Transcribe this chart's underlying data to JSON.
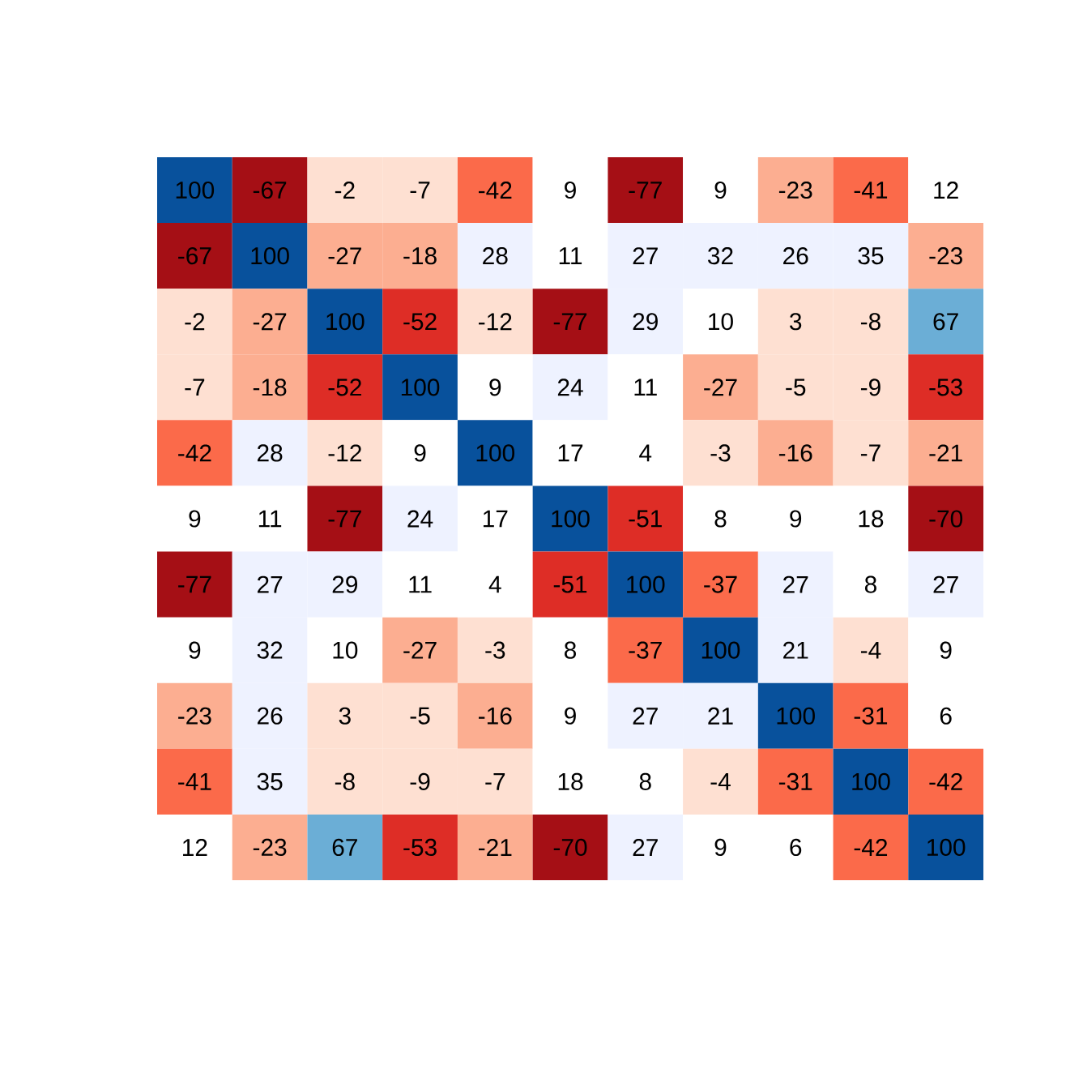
{
  "chart_data": {
    "type": "heatmap",
    "categories": [
      null,
      null,
      null,
      null,
      null,
      null,
      null,
      null,
      null,
      null,
      null
    ],
    "y_categories": [
      null,
      null,
      null,
      null,
      null,
      null,
      null,
      null,
      null,
      null,
      null
    ],
    "cells": [
      [
        100,
        -67,
        -2,
        -7,
        -42,
        9,
        -77,
        9,
        -23,
        -41,
        12
      ],
      [
        -67,
        100,
        -27,
        -18,
        28,
        11,
        27,
        32,
        26,
        35,
        -23
      ],
      [
        -2,
        -27,
        100,
        -52,
        -12,
        -77,
        29,
        10,
        3,
        -8,
        67
      ],
      [
        -7,
        -18,
        -52,
        100,
        9,
        24,
        11,
        -27,
        -5,
        -9,
        -53
      ],
      [
        -42,
        28,
        -12,
        9,
        100,
        17,
        4,
        -3,
        -16,
        -7,
        -21
      ],
      [
        9,
        11,
        -77,
        24,
        17,
        100,
        -51,
        8,
        9,
        18,
        -70
      ],
      [
        -77,
        27,
        29,
        11,
        4,
        -51,
        100,
        -37,
        27,
        8,
        27
      ],
      [
        9,
        32,
        10,
        -27,
        -3,
        8,
        -37,
        100,
        21,
        -4,
        9
      ],
      [
        -23,
        26,
        3,
        -5,
        -16,
        9,
        27,
        21,
        100,
        -31,
        6
      ],
      [
        -41,
        35,
        -8,
        -9,
        -7,
        18,
        8,
        -4,
        -31,
        100,
        -42
      ],
      [
        12,
        -23,
        67,
        -53,
        -21,
        -70,
        27,
        9,
        6,
        -42,
        100
      ]
    ],
    "colors": [
      [
        "#08519c",
        "#a50f15",
        "#fee0d2",
        "#fee0d2",
        "#fb6a4a",
        "#ffffff",
        "#a50f15",
        "#ffffff",
        "#fcae91",
        "#fb6a4a",
        "#ffffff"
      ],
      [
        "#a50f15",
        "#08519c",
        "#fcae91",
        "#fcae91",
        "#eef2ff",
        "#ffffff",
        "#eef2ff",
        "#eef2ff",
        "#eef2ff",
        "#eef2ff",
        "#fcae91"
      ],
      [
        "#fee0d2",
        "#fcae91",
        "#08519c",
        "#de2d26",
        "#fee0d2",
        "#a50f15",
        "#eef2ff",
        "#ffffff",
        "#fee0d2",
        "#fee0d2",
        "#6baed6"
      ],
      [
        "#fee0d2",
        "#fcae91",
        "#de2d26",
        "#08519c",
        "#ffffff",
        "#eef2ff",
        "#ffffff",
        "#fcae91",
        "#fee0d2",
        "#fee0d2",
        "#de2d26"
      ],
      [
        "#fb6a4a",
        "#eef2ff",
        "#fee0d2",
        "#ffffff",
        "#08519c",
        "#ffffff",
        "#ffffff",
        "#fee0d2",
        "#fcae91",
        "#fee0d2",
        "#fcae91"
      ],
      [
        "#ffffff",
        "#ffffff",
        "#a50f15",
        "#eef2ff",
        "#ffffff",
        "#08519c",
        "#de2d26",
        "#ffffff",
        "#ffffff",
        "#ffffff",
        "#a50f15"
      ],
      [
        "#a50f15",
        "#eef2ff",
        "#eef2ff",
        "#ffffff",
        "#ffffff",
        "#de2d26",
        "#08519c",
        "#fb6a4a",
        "#eef2ff",
        "#ffffff",
        "#eef2ff"
      ],
      [
        "#ffffff",
        "#eef2ff",
        "#ffffff",
        "#fcae91",
        "#fee0d2",
        "#ffffff",
        "#fb6a4a",
        "#08519c",
        "#eef2ff",
        "#fee0d2",
        "#ffffff"
      ],
      [
        "#fcae91",
        "#eef2ff",
        "#fee0d2",
        "#fee0d2",
        "#fcae91",
        "#ffffff",
        "#eef2ff",
        "#eef2ff",
        "#08519c",
        "#fb6a4a",
        "#ffffff"
      ],
      [
        "#fb6a4a",
        "#eef2ff",
        "#fee0d2",
        "#fee0d2",
        "#fee0d2",
        "#ffffff",
        "#ffffff",
        "#fee0d2",
        "#fb6a4a",
        "#08519c",
        "#fb6a4a"
      ],
      [
        "#ffffff",
        "#fcae91",
        "#6baed6",
        "#de2d26",
        "#fcae91",
        "#a50f15",
        "#eef2ff",
        "#ffffff",
        "#ffffff",
        "#fb6a4a",
        "#08519c"
      ]
    ],
    "data_labels": true
  }
}
